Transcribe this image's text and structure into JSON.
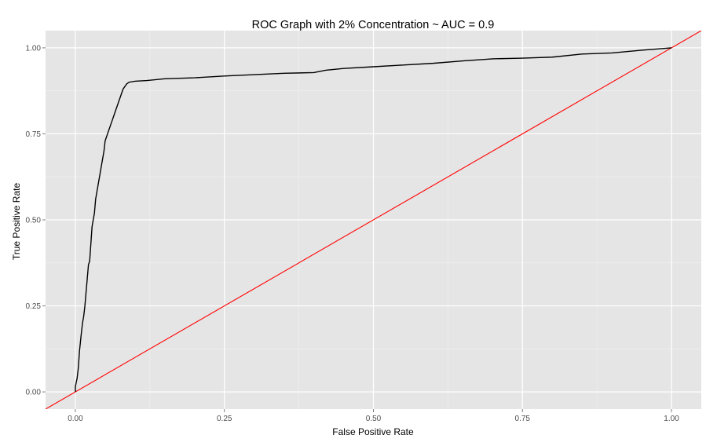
{
  "chart_data": {
    "type": "line",
    "title": "ROC Graph with 2% Concentration ~ AUC =  0.9",
    "xlabel": "False Positive Rate",
    "ylabel": "True Positive Rate",
    "xlim": [
      -0.05,
      1.05
    ],
    "ylim": [
      -0.05,
      1.05
    ],
    "x_ticks": [
      0.0,
      0.25,
      0.5,
      0.75,
      1.0
    ],
    "x_tick_labels": [
      "0.00",
      "0.25",
      "0.50",
      "0.75",
      "1.00"
    ],
    "y_ticks": [
      0.0,
      0.25,
      0.5,
      0.75,
      1.0
    ],
    "y_tick_labels": [
      "0.00",
      "0.25",
      "0.50",
      "0.75",
      "1.00"
    ],
    "grid": true,
    "background": "#e5e5e5",
    "series": [
      {
        "color": "#000000",
        "x": [
          0.0,
          0.0,
          0.003,
          0.005,
          0.007,
          0.01,
          0.012,
          0.014,
          0.016,
          0.018,
          0.02,
          0.022,
          0.024,
          0.026,
          0.028,
          0.03,
          0.032,
          0.034,
          0.036,
          0.038,
          0.04,
          0.042,
          0.044,
          0.046,
          0.048,
          0.05,
          0.052,
          0.054,
          0.056,
          0.058,
          0.06,
          0.062,
          0.064,
          0.066,
          0.068,
          0.07,
          0.072,
          0.074,
          0.076,
          0.078,
          0.08,
          0.082,
          0.084,
          0.086,
          0.09,
          0.1,
          0.12,
          0.15,
          0.2,
          0.25,
          0.3,
          0.35,
          0.4,
          0.42,
          0.45,
          0.5,
          0.55,
          0.6,
          0.65,
          0.7,
          0.75,
          0.8,
          0.85,
          0.9,
          0.95,
          1.0
        ],
        "y": [
          0.0,
          0.015,
          0.04,
          0.07,
          0.12,
          0.17,
          0.2,
          0.22,
          0.25,
          0.29,
          0.33,
          0.37,
          0.38,
          0.43,
          0.48,
          0.5,
          0.52,
          0.56,
          0.58,
          0.6,
          0.62,
          0.64,
          0.66,
          0.68,
          0.7,
          0.73,
          0.74,
          0.75,
          0.76,
          0.77,
          0.78,
          0.79,
          0.8,
          0.81,
          0.82,
          0.83,
          0.84,
          0.85,
          0.86,
          0.87,
          0.88,
          0.885,
          0.89,
          0.895,
          0.9,
          0.903,
          0.905,
          0.91,
          0.913,
          0.918,
          0.922,
          0.926,
          0.928,
          0.935,
          0.94,
          0.945,
          0.95,
          0.955,
          0.962,
          0.968,
          0.97,
          0.973,
          0.982,
          0.985,
          0.993,
          1.0
        ]
      },
      {
        "color": "#ff0000",
        "x": [
          -0.05,
          1.05
        ],
        "y": [
          -0.05,
          1.05
        ]
      }
    ]
  }
}
